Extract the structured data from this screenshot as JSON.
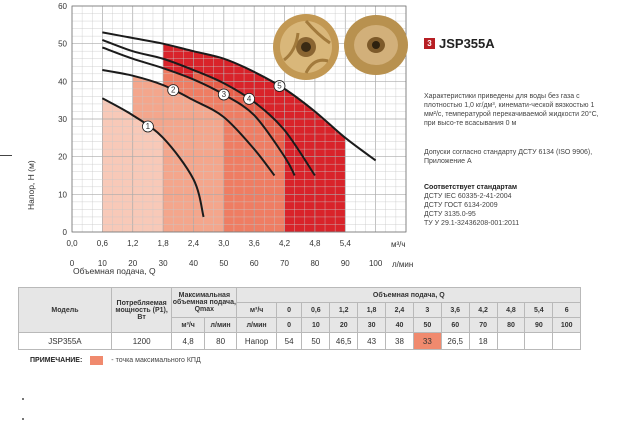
{
  "chart_data": {
    "type": "line",
    "xlabel": "Объемная подача, Q",
    "ylabel": "Напор, Н (м)",
    "x_unit_top": "м³/ч",
    "x_unit_bottom": "л/мин",
    "xlim": [
      0,
      6.6
    ],
    "ylim": [
      0,
      60
    ],
    "x_ticks_m3h": [
      "0,0",
      "0,6",
      "1,2",
      "1,8",
      "2,4",
      "3,0",
      "3,6",
      "4,2",
      "4,8",
      "5,4"
    ],
    "x_ticks_lmin": [
      "0",
      "10",
      "20",
      "30",
      "40",
      "50",
      "60",
      "70",
      "80",
      "90",
      "100"
    ],
    "y_ticks": [
      "0",
      "10",
      "20",
      "30",
      "40",
      "50",
      "60"
    ],
    "grid": true,
    "series": [
      {
        "name": "1",
        "x": [
          0.6,
          1.2,
          1.8,
          2.4,
          2.6
        ],
        "y": [
          35.5,
          31,
          25,
          14,
          4
        ],
        "efficiency_zone": [
          0.6,
          1.8
        ],
        "zone_color": "#f8c9b8"
      },
      {
        "name": "2",
        "x": [
          0.6,
          1.2,
          1.8,
          2.4,
          3.0,
          3.6,
          4.0
        ],
        "y": [
          43,
          41.5,
          39,
          35,
          30.5,
          22,
          15
        ],
        "efficiency_zone": [
          1.2,
          3.0
        ],
        "zone_color": "#f4a68c"
      },
      {
        "name": "3",
        "x": [
          0.6,
          1.2,
          1.8,
          2.4,
          3.0,
          3.6,
          4.2,
          4.4
        ],
        "y": [
          49,
          46,
          43.5,
          40.5,
          36.5,
          31,
          20,
          15
        ],
        "efficiency_zone": [
          1.8,
          4.2
        ],
        "zone_color": "#ef7d63"
      },
      {
        "name": "4",
        "x": [
          0.6,
          1.2,
          1.8,
          2.4,
          3.0,
          3.6,
          4.2,
          4.8
        ],
        "y": [
          51,
          48,
          46,
          43,
          39.5,
          34.5,
          27,
          15
        ],
        "efficiency_zone": [
          2.4,
          4.2
        ],
        "zone_color": "#e85f4a"
      },
      {
        "name": "5",
        "x": [
          0.6,
          1.2,
          1.8,
          2.4,
          3.0,
          3.6,
          4.2,
          4.8,
          5.4,
          6.0
        ],
        "y": [
          53,
          51.5,
          50,
          48,
          46,
          42.5,
          38,
          32,
          25,
          19
        ],
        "efficiency_zone": [
          1.8,
          5.4
        ],
        "zone_color": "#d9232a"
      }
    ]
  },
  "colors": {
    "brand": "#b71f24",
    "highlight": "#f08a6e",
    "grid": "#c8c8c8"
  },
  "product": {
    "number": "3",
    "model": "JSP355A",
    "image": "impeller-photo"
  },
  "description": {
    "conditions": "Характеристики приведены для воды без газа с плотностью 1,0 кг/дм³, кинемати-ческой вязкостью 1 мм²/с, температурой перекачиваемой жидкости 20°С, при высо-те всасывания 0 м",
    "tolerance": "Допуски согласно стандарту ДСТУ 6134 (ISO 9906), Приложение А",
    "standards_title": "Соответствует стандартам",
    "standards": [
      "ДСТУ IEC 60335-2-41-2004",
      "ДСТУ ГОСТ 6134-2009",
      "ДСТУ 3135.0-95",
      "ТУ У 29.1-32436208-001:2011"
    ]
  },
  "table": {
    "col_model": "Модель",
    "col_power": "Потребляемая мощность (P1), Вт",
    "col_qmax": "Максимальная объемная подача, Qmax",
    "col_flow": "Объемная подача, Q",
    "unit_m3h": "м³/ч",
    "unit_lmin": "л/мин",
    "flow_m3h": [
      "0",
      "0,6",
      "1,2",
      "1,8",
      "2,4",
      "3",
      "3,6",
      "4,2",
      "4,8",
      "5,4",
      "6"
    ],
    "flow_lmin": [
      "0",
      "10",
      "20",
      "30",
      "40",
      "50",
      "60",
      "70",
      "80",
      "90",
      "100"
    ],
    "row": {
      "model": "JSP355A",
      "power": "1200",
      "qmax_m3h": "4,8",
      "qmax_lmin": "80",
      "head_label": "Напор",
      "heads": [
        "54",
        "50",
        "46,5",
        "43",
        "38",
        "33",
        "26,5",
        "18",
        "",
        "",
        ""
      ],
      "highlight_index": 5
    }
  },
  "note": {
    "title": "ПРИМЕЧАНИЕ:",
    "text": "- точка максимального КПД"
  }
}
